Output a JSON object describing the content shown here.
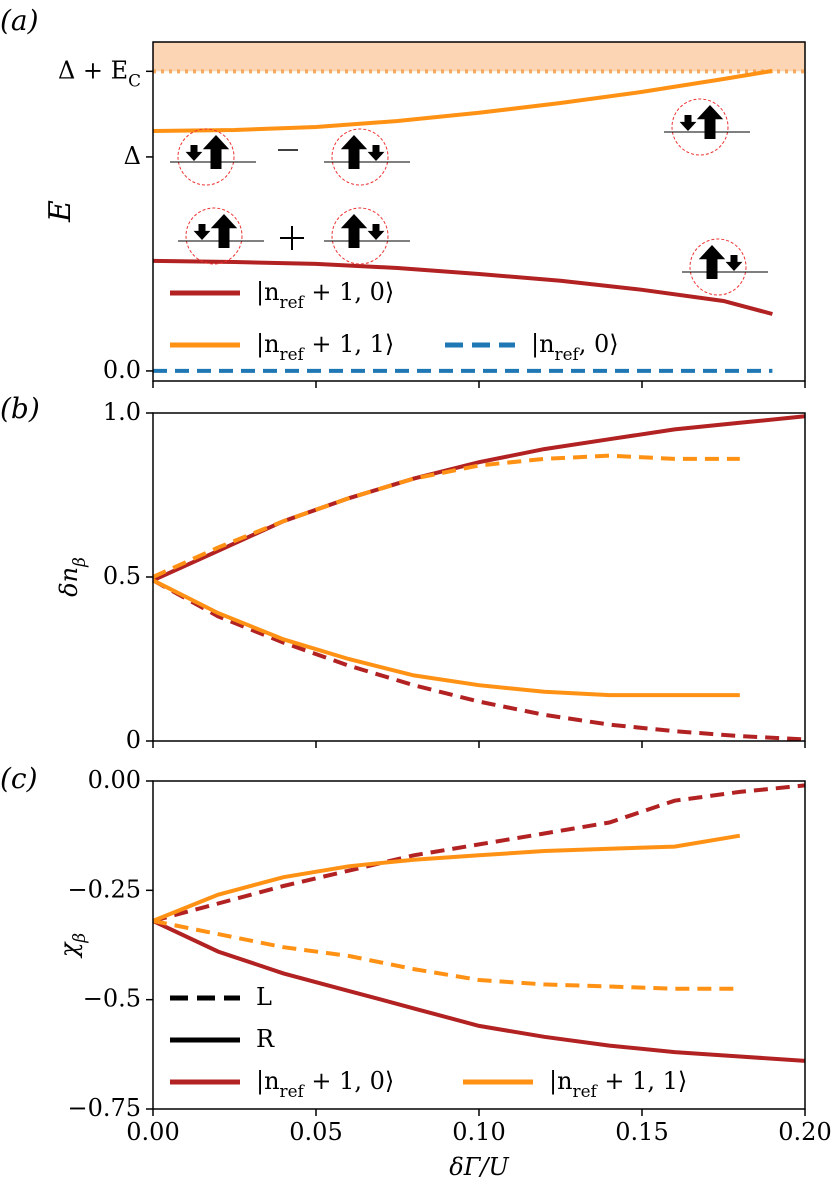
{
  "chart_data": [
    {
      "type": "line",
      "panel_label": "(a)",
      "ylabel": "E",
      "xlim": [
        0,
        0.2
      ],
      "ylim": [
        -0.047,
        1.537
      ],
      "yticks": [
        {
          "value": 0,
          "label": "0.0"
        },
        {
          "value": 1,
          "label": "Δ"
        },
        {
          "value": 1.4,
          "label": "Δ + E_C"
        }
      ],
      "continuum_from": 1.4,
      "continuum_color": "#fcd5b4",
      "x": [
        0,
        0.025,
        0.05,
        0.075,
        0.1,
        0.125,
        0.15,
        0.175,
        0.19
      ],
      "series": [
        {
          "name": "|n_{ref} + 1, 0⟩",
          "color": "#b22222",
          "dash": false,
          "values": [
            0.514,
            0.509,
            0.5,
            0.481,
            0.453,
            0.421,
            0.379,
            0.327,
            0.266
          ]
        },
        {
          "name": "|n_{ref} + 1, 1⟩",
          "color": "#ff9214",
          "dash": false,
          "values": [
            1.121,
            1.126,
            1.14,
            1.168,
            1.206,
            1.252,
            1.304,
            1.364,
            1.402
          ]
        },
        {
          "name": "|n_{ref}, 0⟩",
          "color": "#1f77b4",
          "dash": true,
          "values": [
            0,
            0,
            0,
            0,
            0,
            0,
            0,
            0,
            0
          ]
        }
      ]
    },
    {
      "type": "line",
      "panel_label": "(b)",
      "ylabel": "δn_β",
      "xlim": [
        0,
        0.2
      ],
      "ylim": [
        0,
        1
      ],
      "yticks": [
        0,
        0.5,
        {
          "value": 1,
          "label": "1.0"
        }
      ],
      "x": [
        0,
        0.02,
        0.04,
        0.06,
        0.08,
        0.1,
        0.12,
        0.14,
        0.16,
        0.18,
        0.2
      ],
      "series": [
        {
          "color": "#b22222",
          "dash": false,
          "values": [
            0.49,
            0.58,
            0.67,
            0.74,
            0.8,
            0.85,
            0.89,
            0.92,
            0.95,
            0.97,
            0.99
          ]
        },
        {
          "color": "#b22222",
          "dash": true,
          "values": [
            0.49,
            0.38,
            0.3,
            0.23,
            0.17,
            0.12,
            0.08,
            0.05,
            0.03,
            0.015,
            0.005
          ]
        },
        {
          "color": "#ff9214",
          "dash": false,
          "values": [
            0.49,
            0.39,
            0.31,
            0.25,
            0.2,
            0.17,
            0.15,
            0.14,
            0.14,
            0.14,
            null
          ]
        },
        {
          "color": "#ff9214",
          "dash": true,
          "values": [
            0.5,
            0.59,
            0.67,
            0.74,
            0.8,
            0.84,
            0.86,
            0.87,
            0.86,
            0.86,
            null
          ]
        }
      ]
    },
    {
      "type": "line",
      "panel_label": "(c)",
      "ylabel": "χ_β",
      "xlabel": "δΓ/U",
      "xlim": [
        0,
        0.2
      ],
      "ylim": [
        -0.75,
        0
      ],
      "yticks": [
        {
          "value": -0.75,
          "label": "−0.75"
        },
        {
          "value": -0.5,
          "label": "−0.5"
        },
        {
          "value": -0.25,
          "label": "−0.25"
        },
        {
          "value": 0,
          "label": "0.00"
        }
      ],
      "xticks": [
        {
          "value": 0,
          "label": "0.00"
        },
        {
          "value": 0.05,
          "label": "0.05"
        },
        {
          "value": 0.1,
          "label": "0.10"
        },
        {
          "value": 0.15,
          "label": "0.15"
        },
        {
          "value": 0.2,
          "label": "0.20"
        }
      ],
      "x": [
        0,
        0.02,
        0.04,
        0.06,
        0.08,
        0.1,
        0.12,
        0.14,
        0.16,
        0.18,
        0.2
      ],
      "series": [
        {
          "color": "#b22222",
          "dash": true,
          "values": [
            -0.32,
            -0.28,
            -0.24,
            -0.205,
            -0.17,
            -0.145,
            -0.12,
            -0.095,
            -0.045,
            -0.025,
            -0.01
          ]
        },
        {
          "color": "#b22222",
          "dash": false,
          "values": [
            -0.32,
            -0.39,
            -0.44,
            -0.48,
            -0.52,
            -0.56,
            -0.585,
            -0.605,
            -0.62,
            -0.63,
            -0.64
          ]
        },
        {
          "color": "#ff9214",
          "dash": false,
          "values": [
            -0.32,
            -0.26,
            -0.22,
            -0.195,
            -0.18,
            -0.17,
            -0.16,
            -0.155,
            -0.15,
            -0.125,
            null
          ]
        },
        {
          "color": "#ff9214",
          "dash": true,
          "values": [
            -0.32,
            -0.35,
            -0.38,
            -0.4,
            -0.43,
            -0.455,
            -0.465,
            -0.47,
            -0.475,
            -0.475,
            null
          ]
        }
      ],
      "legend": [
        {
          "label": "L",
          "color": "#000000",
          "dash": true
        },
        {
          "label": "R",
          "color": "#000000",
          "dash": false
        },
        {
          "label": "|n_{ref} + 1, 0⟩",
          "color": "#b22222",
          "dash": false
        },
        {
          "label": "|n_{ref} + 1, 1⟩",
          "color": "#ff9214",
          "dash": false
        }
      ]
    }
  ]
}
